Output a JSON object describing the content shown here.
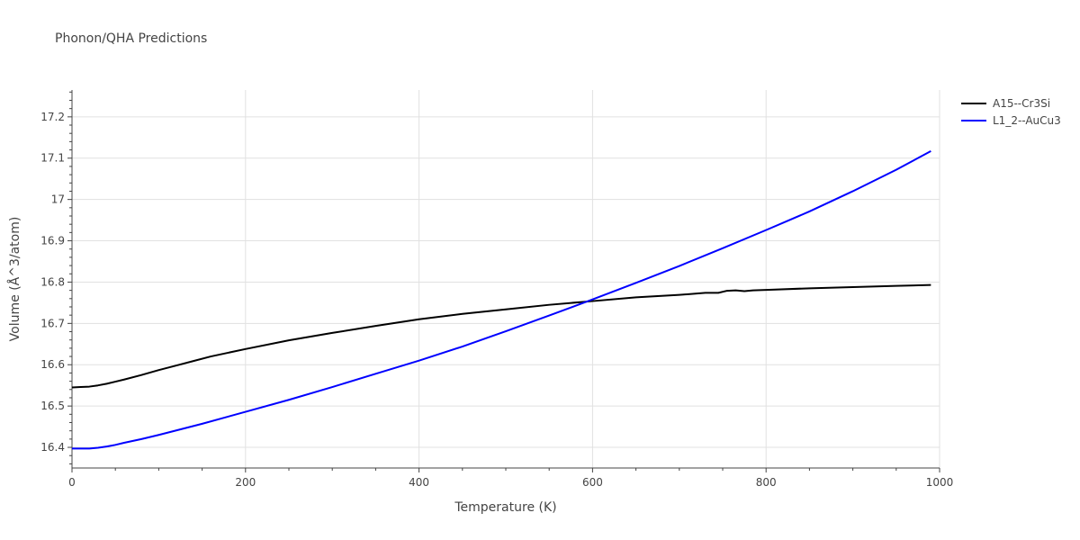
{
  "chart_data": {
    "type": "line",
    "title": "Phonon/QHA Predictions",
    "xlabel": "Temperature (K)",
    "ylabel": "Volume (Å^3/atom)",
    "xlim": [
      0,
      1000
    ],
    "ylim": [
      16.35,
      17.265
    ],
    "xticks": [
      0,
      200,
      400,
      600,
      800,
      1000
    ],
    "xtick_labels": [
      "0",
      "200",
      "400",
      "600",
      "800",
      "1000"
    ],
    "yticks": [
      16.4,
      16.5,
      16.6,
      16.7,
      16.8,
      16.9,
      17,
      17.1,
      17.2
    ],
    "ytick_labels": [
      "16.4",
      "16.5",
      "16.6",
      "16.7",
      "16.8",
      "16.9",
      "17",
      "17.1",
      "17.2"
    ],
    "grid": true,
    "legend_position": "top-right outside",
    "series": [
      {
        "name": "A15--Cr3Si",
        "color": "#000000",
        "x": [
          0,
          10,
          20,
          30,
          40,
          50,
          60,
          80,
          100,
          120,
          140,
          160,
          180,
          200,
          250,
          300,
          350,
          400,
          450,
          500,
          550,
          600,
          650,
          700,
          730,
          745,
          755,
          765,
          775,
          785,
          800,
          850,
          900,
          950,
          990
        ],
        "y": [
          16.545,
          16.546,
          16.547,
          16.55,
          16.554,
          16.559,
          16.564,
          16.575,
          16.587,
          16.598,
          16.609,
          16.62,
          16.629,
          16.638,
          16.659,
          16.677,
          16.694,
          16.71,
          16.723,
          16.734,
          16.745,
          16.754,
          16.763,
          16.769,
          16.774,
          16.774,
          16.779,
          16.78,
          16.778,
          16.78,
          16.781,
          16.785,
          16.788,
          16.791,
          16.793
        ]
      },
      {
        "name": "L1_2--AuCu3",
        "color": "#0000ff",
        "x": [
          0,
          10,
          20,
          30,
          40,
          50,
          60,
          80,
          100,
          150,
          200,
          250,
          300,
          350,
          400,
          450,
          500,
          550,
          600,
          650,
          700,
          750,
          800,
          850,
          900,
          950,
          990
        ],
        "y": [
          16.397,
          16.397,
          16.397,
          16.399,
          16.402,
          16.406,
          16.411,
          16.42,
          16.43,
          16.457,
          16.486,
          16.515,
          16.546,
          16.578,
          16.61,
          16.644,
          16.681,
          16.719,
          16.758,
          16.798,
          16.839,
          16.882,
          16.926,
          16.971,
          17.02,
          17.072,
          17.117
        ]
      }
    ]
  }
}
